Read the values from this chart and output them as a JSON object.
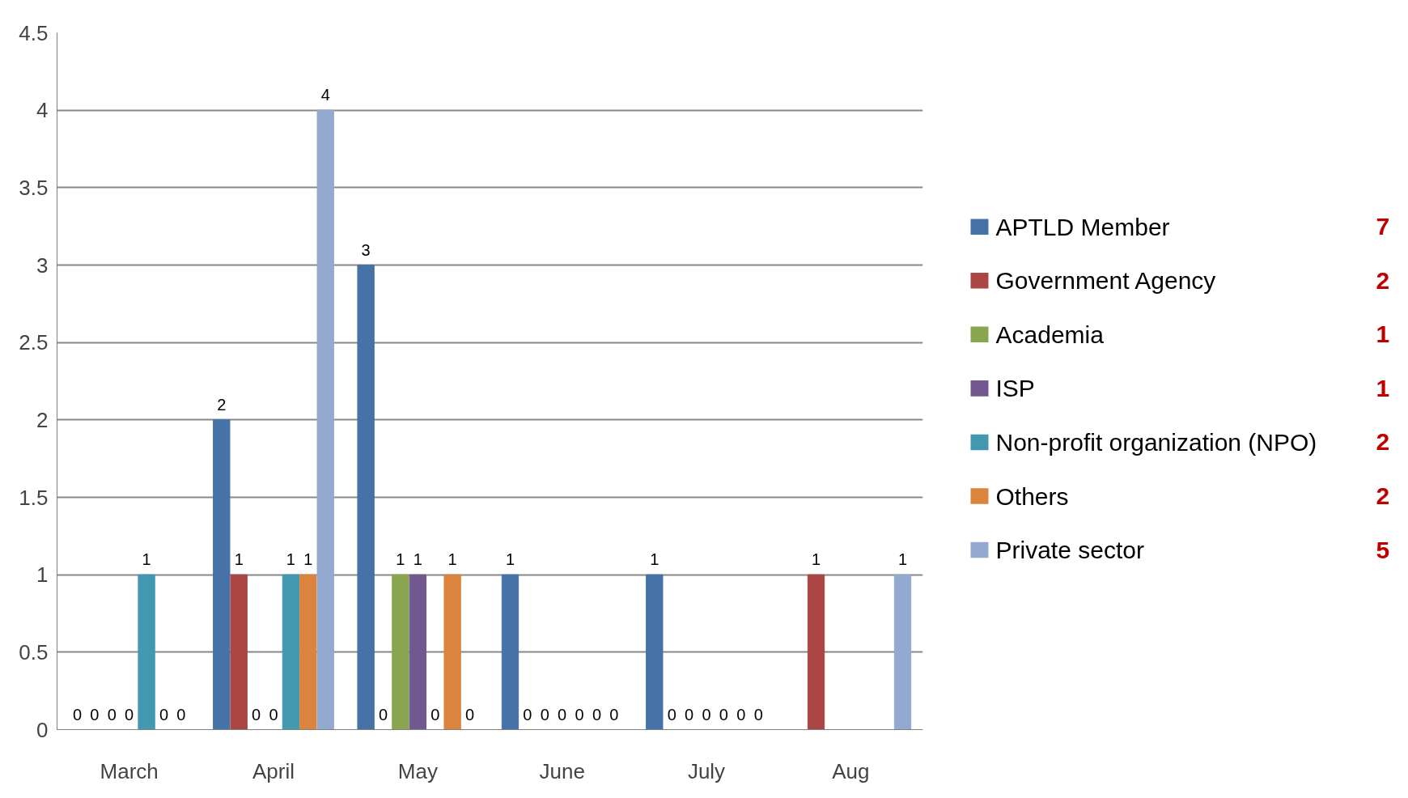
{
  "chart_data": {
    "type": "bar",
    "categories": [
      "March",
      "April",
      "May",
      "June",
      "July",
      "Aug"
    ],
    "series": [
      {
        "name": "APTLD Member",
        "color": "#4572a7",
        "values": [
          0,
          2,
          3,
          1,
          1,
          null
        ]
      },
      {
        "name": "Government Agency",
        "color": "#aa4643",
        "values": [
          0,
          1,
          0,
          0,
          0,
          1
        ]
      },
      {
        "name": "Academia",
        "color": "#89a54e",
        "values": [
          0,
          0,
          1,
          0,
          0,
          null
        ]
      },
      {
        "name": "ISP",
        "color": "#71588f",
        "values": [
          0,
          0,
          1,
          0,
          0,
          null
        ]
      },
      {
        "name": "Non-profit organization  (NPO)",
        "color": "#4198af",
        "values": [
          1,
          1,
          0,
          0,
          0,
          null
        ]
      },
      {
        "name": "Others",
        "color": "#db843d",
        "values": [
          0,
          1,
          1,
          0,
          0,
          null
        ]
      },
      {
        "name": "Private sector",
        "color": "#93a9cf",
        "values": [
          0,
          4,
          0,
          0,
          0,
          1
        ]
      }
    ],
    "ylim": [
      0,
      4.5
    ],
    "yticks": [
      0,
      0.5,
      1,
      1.5,
      2,
      2.5,
      3,
      3.5,
      4,
      4.5
    ],
    "grid": "y",
    "legend": "right",
    "data_labels": true,
    "annotations": [
      "7",
      "2",
      "1",
      "1",
      "2",
      "2",
      "5"
    ]
  }
}
